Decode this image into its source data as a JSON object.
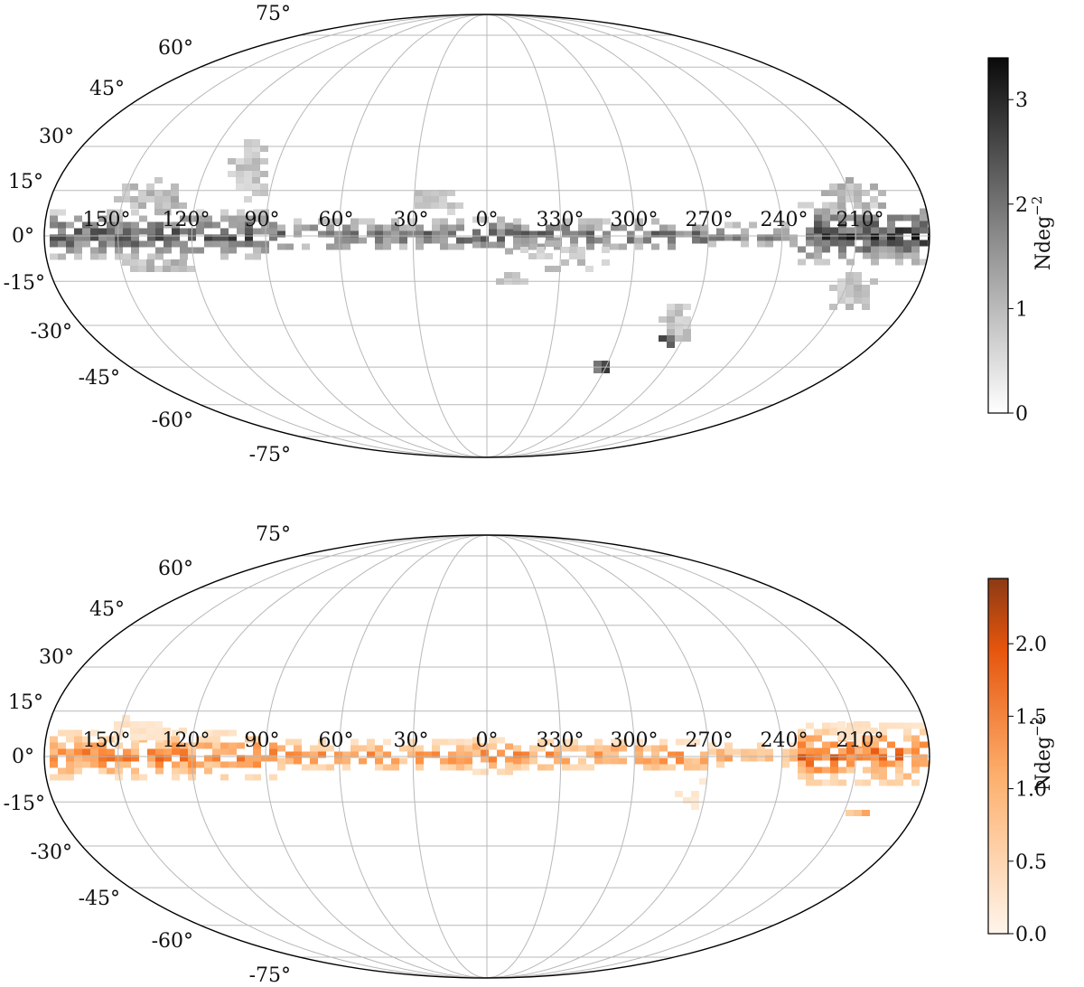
{
  "chart_data": [
    {
      "type": "heatmap",
      "projection": "mollweide",
      "panel": "top",
      "colormap": "Greys",
      "colors": {
        "low": "#ffffff",
        "high": "#111111"
      },
      "longitude_labels": [
        "150°",
        "120°",
        "90°",
        "60°",
        "30°",
        "0°",
        "330°",
        "300°",
        "270°",
        "240°",
        "210°"
      ],
      "latitude_labels": [
        "75°",
        "60°",
        "45°",
        "30°",
        "15°",
        "0°",
        "-15°",
        "-30°",
        "-45°",
        "-60°",
        "-75°"
      ],
      "colorbar": {
        "label": "Ndeg",
        "label_exponent": "−2",
        "ticks": [
          "0",
          "1",
          "2",
          "3"
        ],
        "range": [
          0,
          3.4
        ]
      },
      "features": [
        {
          "desc": "galactic plane band",
          "l_range": [
            150,
            -205
          ],
          "b_range": [
            -5,
            5
          ],
          "value": 2.6
        },
        {
          "desc": "dense cluster near l=210",
          "l": 210,
          "b": 0,
          "value": 3.0
        },
        {
          "desc": "patch above plane l=90-120",
          "l": 100,
          "b": 25,
          "value": 1.0
        },
        {
          "desc": "LMC-like knot",
          "l": 280,
          "b": -33,
          "value": 3.3
        },
        {
          "desc": "SMC-like knot",
          "l": 303,
          "b": -44,
          "value": 3.2
        }
      ]
    },
    {
      "type": "heatmap",
      "projection": "mollweide",
      "panel": "bottom",
      "colormap": "Oranges",
      "colors": {
        "low": "#fff5eb",
        "high": "#8c3a14"
      },
      "longitude_labels": [
        "150°",
        "120°",
        "90°",
        "60°",
        "30°",
        "0°",
        "330°",
        "300°",
        "270°",
        "240°",
        "210°"
      ],
      "latitude_labels": [
        "75°",
        "60°",
        "45°",
        "30°",
        "15°",
        "0°",
        "-15°",
        "-30°",
        "-45°",
        "-60°",
        "-75°"
      ],
      "colorbar": {
        "label": "Ndeg",
        "label_exponent": "−2",
        "ticks": [
          "0.0",
          "0.5",
          "1.0",
          "1.5",
          "2.0"
        ],
        "range": [
          0,
          2.45
        ]
      },
      "features": [
        {
          "desc": "galactic plane band",
          "l_range": [
            150,
            -205
          ],
          "b_range": [
            -5,
            5
          ],
          "value": 1.8
        },
        {
          "desc": "dense cluster near l=210",
          "l": 210,
          "b": 0,
          "value": 2.0
        }
      ]
    }
  ]
}
